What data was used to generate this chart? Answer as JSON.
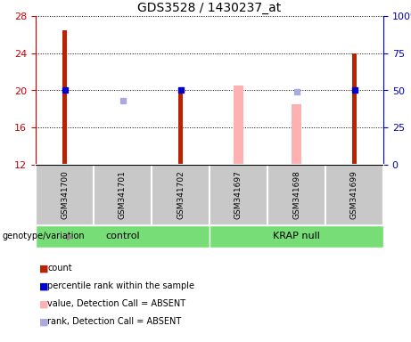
{
  "title": "GDS3528 / 1430237_at",
  "samples": [
    "GSM341700",
    "GSM341701",
    "GSM341702",
    "GSM341697",
    "GSM341698",
    "GSM341699"
  ],
  "ylim_left": [
    12,
    28
  ],
  "ylim_right": [
    0,
    100
  ],
  "yticks_left": [
    12,
    16,
    20,
    24,
    28
  ],
  "yticks_right": [
    0,
    25,
    50,
    75,
    100
  ],
  "ytick_labels_right": [
    "0",
    "25",
    "50",
    "75",
    "100%"
  ],
  "red_bars": {
    "GSM341700": 26.5,
    "GSM341701": 12.1,
    "GSM341702": 20.1,
    "GSM341699": 24.0
  },
  "pink_bars": {
    "GSM341697": 20.5,
    "GSM341698": 18.5
  },
  "blue_squares": {
    "GSM341700": 50,
    "GSM341702": 50,
    "GSM341699": 50
  },
  "light_blue_squares": {
    "GSM341701": 43,
    "GSM341698": 49
  },
  "bar_color_red": "#BB2200",
  "bar_color_pink": "#FFB0B0",
  "square_color_blue": "#0000CC",
  "square_color_lightblue": "#AAAADD",
  "label_color_left": "#CC0000",
  "label_color_right": "#0000BB",
  "legend_items": [
    {
      "label": "count",
      "color": "#BB2200"
    },
    {
      "label": "percentile rank within the sample",
      "color": "#0000CC"
    },
    {
      "label": "value, Detection Call = ABSENT",
      "color": "#FFB0B0"
    },
    {
      "label": "rank, Detection Call = ABSENT",
      "color": "#AAAADD"
    }
  ],
  "group_color": "#77DD77",
  "sample_bg_color": "#C8C8C8",
  "groups": [
    {
      "name": "control",
      "start": 0,
      "end": 2
    },
    {
      "name": "KRAP null",
      "start": 3,
      "end": 5
    }
  ]
}
